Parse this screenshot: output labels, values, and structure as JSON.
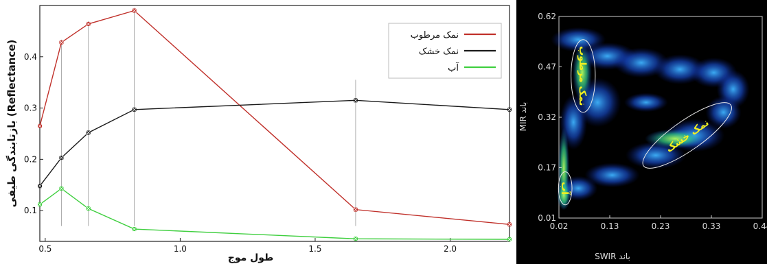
{
  "chart_data": [
    {
      "type": "line",
      "xlabel": "طول موج",
      "ylabel": "بازتابندگی طیفی (Reflectance)",
      "xlim": [
        0.48,
        2.22
      ],
      "ylim": [
        0.04,
        0.5
      ],
      "xticks": [
        0.5,
        1.0,
        1.5,
        2.0
      ],
      "xtick_labels": [
        "0.5",
        "1.0",
        "1.5",
        "2.0"
      ],
      "yticks": [
        0.1,
        0.2,
        0.3,
        0.4
      ],
      "ytick_labels": [
        "0.1",
        "0.2",
        "0.3",
        "0.4"
      ],
      "grid": false,
      "legend_position": "top-right",
      "x": [
        0.48,
        0.56,
        0.66,
        0.83,
        1.65,
        2.22
      ],
      "series": [
        {
          "name": "نمک مرطوب",
          "color": "#c0302a",
          "values": [
            0.265,
            0.428,
            0.464,
            0.49,
            0.102,
            0.073
          ]
        },
        {
          "name": "نمک خشک",
          "color": "#1a1a1a",
          "values": [
            0.148,
            0.203,
            0.252,
            0.297,
            0.315,
            0.297
          ]
        },
        {
          "name": "آب",
          "color": "#3fcf3f",
          "values": [
            0.112,
            0.143,
            0.104,
            0.064,
            0.045,
            0.044
          ]
        }
      ],
      "vertical_lines": [
        0.56,
        0.66,
        0.83,
        1.65
      ]
    },
    {
      "type": "heatmap",
      "xlabel": "SWIR باند",
      "ylabel": "MIR باند",
      "xlim": [
        0.02,
        0.44
      ],
      "ylim": [
        0.01,
        0.62
      ],
      "xtick_labels": [
        "0.02",
        "0.13",
        "0.23",
        "0.33",
        "0.44"
      ],
      "ytick_labels": [
        "0.01",
        "0.17",
        "0.32",
        "0.47",
        "0.62"
      ],
      "background": "#000000",
      "annotations": [
        {
          "label": "نمک مرطوب",
          "x": 0.07,
          "y": 0.44,
          "rx": 0.025,
          "ry": 0.11
        },
        {
          "label": "نمک خشک",
          "x": 0.285,
          "y": 0.26,
          "rx": 0.11,
          "ry": 0.045,
          "angle": -35
        },
        {
          "label": "آب",
          "x": 0.033,
          "y": 0.1,
          "rx": 0.014,
          "ry": 0.05
        }
      ]
    }
  ]
}
